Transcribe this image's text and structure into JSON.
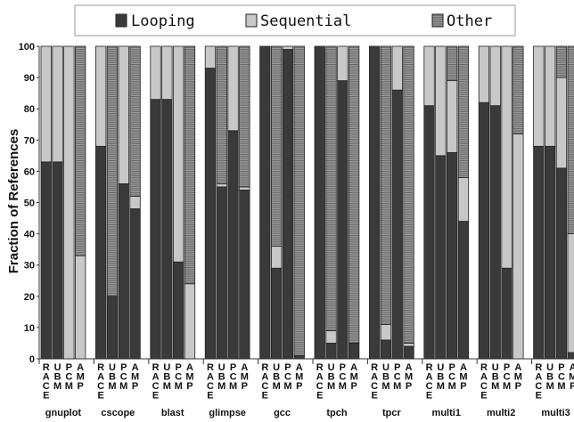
{
  "chart_data": {
    "type": "bar",
    "stacked": true,
    "ylabel": "Fraction of References",
    "ylim": [
      0,
      100
    ],
    "yticks": [
      0,
      10,
      20,
      30,
      40,
      50,
      60,
      70,
      80,
      90,
      100
    ],
    "grid": false,
    "legend_placement": "top",
    "legend": [
      {
        "name": "Looping",
        "color": "#3a3a3a",
        "pattern": "solid"
      },
      {
        "name": "Sequential",
        "color": "#c8c8c8",
        "pattern": "solid"
      },
      {
        "name": "Other",
        "color": "#8a8a8a",
        "pattern": "horizontal-lines"
      }
    ],
    "policies": [
      {
        "key": "RACE",
        "letters": [
          "R",
          "A",
          "C",
          "E"
        ]
      },
      {
        "key": "UBM",
        "letters": [
          "U",
          "B",
          "M"
        ]
      },
      {
        "key": "PCM",
        "letters": [
          "P",
          "C",
          "M"
        ]
      },
      {
        "key": "AMP",
        "letters": [
          "A",
          "M",
          "P"
        ]
      }
    ],
    "groups": [
      {
        "name": "gnuplot",
        "bars": [
          {
            "looping": 63,
            "sequential": 37,
            "other": 0
          },
          {
            "looping": 63,
            "sequential": 37,
            "other": 0
          },
          {
            "looping": 0,
            "sequential": 100,
            "other": 0
          },
          {
            "looping": 0,
            "sequential": 33,
            "other": 67
          }
        ]
      },
      {
        "name": "cscope",
        "bars": [
          {
            "looping": 68,
            "sequential": 32,
            "other": 0
          },
          {
            "looping": 20,
            "sequential": 0,
            "other": 80
          },
          {
            "looping": 56,
            "sequential": 44,
            "other": 0
          },
          {
            "looping": 48,
            "sequential": 4,
            "other": 48
          }
        ]
      },
      {
        "name": "blast",
        "bars": [
          {
            "looping": 83,
            "sequential": 17,
            "other": 0
          },
          {
            "looping": 83,
            "sequential": 17,
            "other": 0
          },
          {
            "looping": 31,
            "sequential": 69,
            "other": 0
          },
          {
            "looping": 0,
            "sequential": 24,
            "other": 76
          }
        ]
      },
      {
        "name": "glimpse",
        "bars": [
          {
            "looping": 93,
            "sequential": 7,
            "other": 0
          },
          {
            "looping": 55,
            "sequential": 1,
            "other": 44
          },
          {
            "looping": 73,
            "sequential": 27,
            "other": 0
          },
          {
            "looping": 54,
            "sequential": 1,
            "other": 45
          }
        ]
      },
      {
        "name": "gcc",
        "bars": [
          {
            "looping": 100,
            "sequential": 0,
            "other": 0
          },
          {
            "looping": 29,
            "sequential": 7,
            "other": 64
          },
          {
            "looping": 99,
            "sequential": 1,
            "other": 0
          },
          {
            "looping": 1,
            "sequential": 0,
            "other": 99
          }
        ]
      },
      {
        "name": "tpch",
        "bars": [
          {
            "looping": 100,
            "sequential": 0,
            "other": 0
          },
          {
            "looping": 5,
            "sequential": 4,
            "other": 91
          },
          {
            "looping": 89,
            "sequential": 11,
            "other": 0
          },
          {
            "looping": 5,
            "sequential": 0,
            "other": 95
          }
        ]
      },
      {
        "name": "tpcr",
        "bars": [
          {
            "looping": 100,
            "sequential": 0,
            "other": 0
          },
          {
            "looping": 6,
            "sequential": 5,
            "other": 89
          },
          {
            "looping": 86,
            "sequential": 14,
            "other": 0
          },
          {
            "looping": 4,
            "sequential": 1,
            "other": 95
          }
        ]
      },
      {
        "name": "multi1",
        "bars": [
          {
            "looping": 81,
            "sequential": 19,
            "other": 0
          },
          {
            "looping": 65,
            "sequential": 35,
            "other": 0
          },
          {
            "looping": 66,
            "sequential": 23,
            "other": 11
          },
          {
            "looping": 44,
            "sequential": 14,
            "other": 42
          }
        ]
      },
      {
        "name": "multi2",
        "bars": [
          {
            "looping": 82,
            "sequential": 18,
            "other": 0
          },
          {
            "looping": 81,
            "sequential": 19,
            "other": 0
          },
          {
            "looping": 29,
            "sequential": 71,
            "other": 0
          },
          {
            "looping": 0,
            "sequential": 72,
            "other": 28
          }
        ]
      },
      {
        "name": "multi3",
        "bars": [
          {
            "looping": 68,
            "sequential": 32,
            "other": 0
          },
          {
            "looping": 68,
            "sequential": 32,
            "other": 0
          },
          {
            "looping": 61,
            "sequential": 29,
            "other": 10
          },
          {
            "looping": 2,
            "sequential": 38,
            "other": 60
          }
        ]
      }
    ]
  }
}
